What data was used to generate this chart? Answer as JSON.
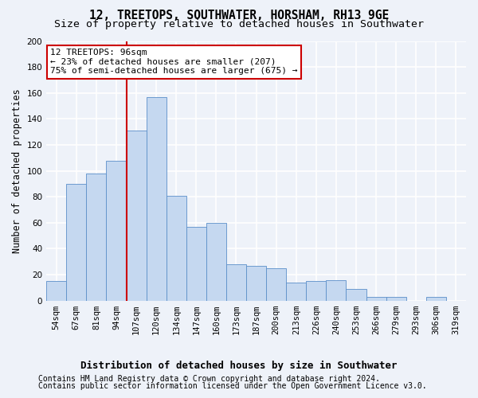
{
  "title": "12, TREETOPS, SOUTHWATER, HORSHAM, RH13 9GE",
  "subtitle": "Size of property relative to detached houses in Southwater",
  "xlabel": "Distribution of detached houses by size in Southwater",
  "ylabel": "Number of detached properties",
  "categories": [
    "54sqm",
    "67sqm",
    "81sqm",
    "94sqm",
    "107sqm",
    "120sqm",
    "134sqm",
    "147sqm",
    "160sqm",
    "173sqm",
    "187sqm",
    "200sqm",
    "213sqm",
    "226sqm",
    "240sqm",
    "253sqm",
    "266sqm",
    "279sqm",
    "293sqm",
    "306sqm",
    "319sqm"
  ],
  "values": [
    15,
    90,
    98,
    108,
    131,
    157,
    81,
    57,
    60,
    28,
    27,
    25,
    14,
    15,
    16,
    9,
    3,
    3,
    0,
    3,
    0
  ],
  "bar_color": "#c5d8f0",
  "bar_edge_color": "#5b8fc9",
  "vline_x": 3.5,
  "vline_color": "#cc0000",
  "annotation_line1": "12 TREETOPS: 96sqm",
  "annotation_line2": "← 23% of detached houses are smaller (207)",
  "annotation_line3": "75% of semi-detached houses are larger (675) →",
  "annotation_box_color": "#ffffff",
  "annotation_box_edge": "#cc0000",
  "ylim": [
    0,
    200
  ],
  "yticks": [
    0,
    20,
    40,
    60,
    80,
    100,
    120,
    140,
    160,
    180,
    200
  ],
  "footer1": "Contains HM Land Registry data © Crown copyright and database right 2024.",
  "footer2": "Contains public sector information licensed under the Open Government Licence v3.0.",
  "bg_color": "#eef2f9",
  "grid_color": "#ffffff",
  "title_fontsize": 10.5,
  "subtitle_fontsize": 9.5,
  "ylabel_fontsize": 8.5,
  "xlabel_fontsize": 9,
  "tick_fontsize": 7.5,
  "footer_fontsize": 7,
  "ann_fontsize": 8
}
